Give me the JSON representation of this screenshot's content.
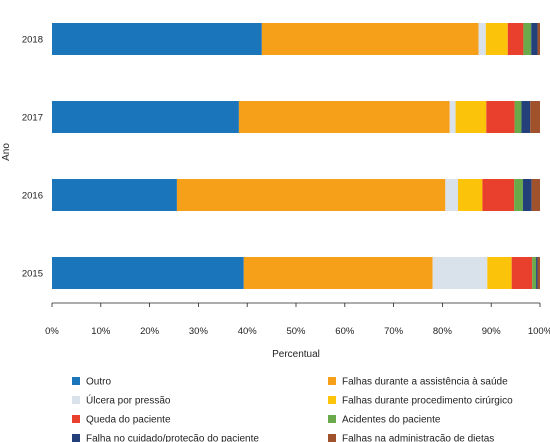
{
  "chart_data": {
    "type": "bar",
    "orientation": "horizontal",
    "stacked": true,
    "xlabel": "Percentual",
    "ylabel": "Ano",
    "xlim": [
      0,
      100
    ],
    "x_ticks": [
      "0%",
      "10%",
      "20%",
      "30%",
      "40%",
      "50%",
      "60%",
      "70%",
      "80%",
      "90%",
      "100%"
    ],
    "categories": [
      "2018",
      "2017",
      "2016",
      "2015"
    ],
    "series": [
      {
        "name": "Outro",
        "color": "#1a75bb",
        "values": [
          43.0,
          38.3,
          25.6,
          39.3
        ]
      },
      {
        "name": "Falhas durante a assistência à saúde",
        "color": "#f6a01a",
        "values": [
          44.4,
          43.2,
          55.0,
          38.7
        ]
      },
      {
        "name": "Úlcera por pressão",
        "color": "#d9e2ea",
        "values": [
          1.5,
          1.2,
          2.6,
          11.2
        ]
      },
      {
        "name": "Falhas durante procedimento cirúrgico",
        "color": "#fcc30b",
        "values": [
          4.5,
          6.3,
          5.0,
          5.0
        ]
      },
      {
        "name": "Queda do paciente",
        "color": "#e8402c",
        "values": [
          3.2,
          5.8,
          6.5,
          4.2
        ]
      },
      {
        "name": "Acidentes do paciente",
        "color": "#6aaa4a",
        "values": [
          1.6,
          1.4,
          1.8,
          0.8
        ]
      },
      {
        "name": "Falha no cuidado/proteção do paciente",
        "color": "#23407a",
        "values": [
          1.3,
          1.8,
          1.8,
          0.3
        ]
      },
      {
        "name": "Falhas na administração de dietas",
        "color": "#a0522d",
        "values": [
          0.5,
          2.0,
          1.7,
          0.5
        ]
      }
    ],
    "legend": {
      "placement": "bottom",
      "columns": [
        [
          "Outro",
          "Úlcera por pressão",
          "Queda do paciente",
          "Falha no cuidado/proteção do paciente"
        ],
        [
          "Falhas durante a assistência à saúde",
          "Falhas durante procedimento cirúrgico",
          "Acidentes do paciente",
          "Falhas na administração de dietas"
        ]
      ]
    },
    "grid": false
  }
}
